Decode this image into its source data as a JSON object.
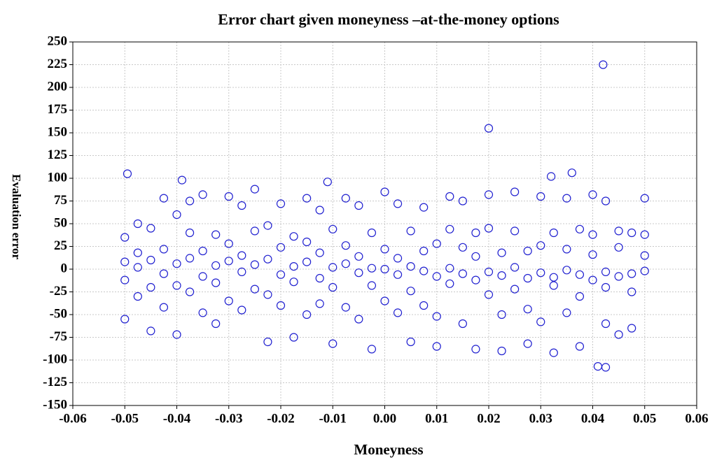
{
  "chart_data": {
    "type": "scatter",
    "title": "Error chart given moneyness –at-the-money options",
    "xlabel": "Moneyness",
    "ylabel": "Evaluation error",
    "xlim": [
      -0.06,
      0.06
    ],
    "ylim": [
      -150,
      250
    ],
    "xticks": [
      {
        "value": -0.06,
        "label": "-0.06"
      },
      {
        "value": -0.05,
        "label": "-0.05"
      },
      {
        "value": -0.04,
        "label": "-0.04"
      },
      {
        "value": -0.03,
        "label": "-0.03"
      },
      {
        "value": -0.02,
        "label": "-0.02"
      },
      {
        "value": -0.01,
        "label": "-0.01"
      },
      {
        "value": 0,
        "label": "0.00"
      },
      {
        "value": 0.01,
        "label": "0.01"
      },
      {
        "value": 0.02,
        "label": "0.02"
      },
      {
        "value": 0.03,
        "label": "0.03"
      },
      {
        "value": 0.04,
        "label": "0.04"
      },
      {
        "value": 0.05,
        "label": "0.05"
      },
      {
        "value": 0.06,
        "label": "0.06"
      }
    ],
    "yticks": [
      -150,
      -125,
      -100,
      -75,
      -50,
      -25,
      0,
      25,
      50,
      75,
      100,
      125,
      150,
      175,
      200,
      225,
      250
    ],
    "grid": true,
    "series": [
      {
        "color": "#1f1fd0",
        "x": [
          -0.05,
          -0.05,
          -0.05,
          -0.05,
          -0.0475,
          -0.0475,
          -0.0475,
          -0.0475,
          -0.045,
          -0.045,
          -0.045,
          -0.045,
          -0.0425,
          -0.0425,
          -0.0425,
          -0.0425,
          -0.04,
          -0.04,
          -0.04,
          -0.04,
          -0.0375,
          -0.0375,
          -0.0375,
          -0.0375,
          -0.035,
          -0.035,
          -0.035,
          -0.035,
          -0.0325,
          -0.0325,
          -0.0325,
          -0.0325,
          -0.03,
          -0.03,
          -0.03,
          -0.03,
          -0.0275,
          -0.0275,
          -0.0275,
          -0.0275,
          -0.025,
          -0.025,
          -0.025,
          -0.025,
          -0.0225,
          -0.0225,
          -0.0225,
          -0.0225,
          -0.02,
          -0.02,
          -0.02,
          -0.02,
          -0.0175,
          -0.0175,
          -0.0175,
          -0.0175,
          -0.015,
          -0.015,
          -0.015,
          -0.015,
          -0.0125,
          -0.0125,
          -0.0125,
          -0.0125,
          -0.01,
          -0.01,
          -0.01,
          -0.01,
          -0.0075,
          -0.0075,
          -0.0075,
          -0.0075,
          -0.005,
          -0.005,
          -0.005,
          -0.005,
          -0.0025,
          -0.0025,
          -0.0025,
          -0.0025,
          0,
          0,
          0,
          0,
          0.0025,
          0.0025,
          0.0025,
          0.0025,
          0.005,
          0.005,
          0.005,
          0.005,
          0.0075,
          0.0075,
          0.0075,
          0.0075,
          0.01,
          0.01,
          0.01,
          0.01,
          0.0125,
          0.0125,
          0.0125,
          0.0125,
          0.015,
          0.015,
          0.015,
          0.015,
          0.0175,
          0.0175,
          0.0175,
          0.0175,
          0.02,
          0.02,
          0.02,
          0.02,
          0.0225,
          0.0225,
          0.0225,
          0.0225,
          0.025,
          0.025,
          0.025,
          0.025,
          0.0275,
          0.0275,
          0.0275,
          0.0275,
          0.03,
          0.03,
          0.03,
          0.03,
          0.0325,
          0.0325,
          0.0325,
          0.0325,
          0.035,
          0.035,
          0.035,
          0.035,
          0.0375,
          0.0375,
          0.0375,
          0.0375,
          0.04,
          0.04,
          0.04,
          0.04,
          0.0425,
          0.0425,
          0.0425,
          0.0425,
          0.045,
          0.045,
          0.045,
          0.045,
          0.0475,
          0.0475,
          0.0475,
          0.0475,
          0.05,
          0.05,
          0.05,
          0.05,
          0.042,
          0.02,
          -0.0495,
          0.036,
          0.0425,
          0.041,
          -0.039,
          -0.011,
          0.032
        ],
        "y": [
          8,
          -12,
          35,
          -55,
          2,
          18,
          -30,
          50,
          10,
          -20,
          45,
          -68,
          -5,
          22,
          -42,
          78,
          6,
          -18,
          60,
          -72,
          12,
          -25,
          40,
          75,
          -8,
          20,
          -48,
          82,
          4,
          -15,
          38,
          -60,
          9,
          28,
          -35,
          80,
          -3,
          15,
          -45,
          70,
          5,
          -22,
          42,
          88,
          11,
          -28,
          48,
          -80,
          -6,
          24,
          -40,
          72,
          3,
          -14,
          36,
          -75,
          8,
          30,
          -50,
          78,
          -10,
          18,
          -38,
          65,
          2,
          -20,
          44,
          -82,
          6,
          26,
          -42,
          78,
          -4,
          14,
          -55,
          70,
          1,
          -18,
          40,
          -88,
          0,
          22,
          -35,
          85,
          -6,
          12,
          -48,
          72,
          3,
          -24,
          42,
          -80,
          -2,
          20,
          -40,
          68,
          -8,
          28,
          -52,
          -85,
          1,
          -16,
          44,
          80,
          -5,
          24,
          -60,
          75,
          -12,
          14,
          40,
          -88,
          -3,
          -28,
          45,
          82,
          -7,
          18,
          -50,
          -90,
          2,
          -22,
          42,
          85,
          -10,
          20,
          -44,
          -82,
          -4,
          26,
          -58,
          80,
          -9,
          -18,
          40,
          -92,
          -1,
          22,
          -48,
          78,
          -6,
          -30,
          44,
          -85,
          -12,
          16,
          38,
          82,
          -3,
          -20,
          -60,
          75,
          -8,
          24,
          42,
          -72,
          -5,
          -25,
          40,
          -65,
          -2,
          15,
          38,
          78,
          225,
          155,
          105,
          106,
          -108,
          -107,
          98,
          96,
          102
        ]
      }
    ]
  }
}
